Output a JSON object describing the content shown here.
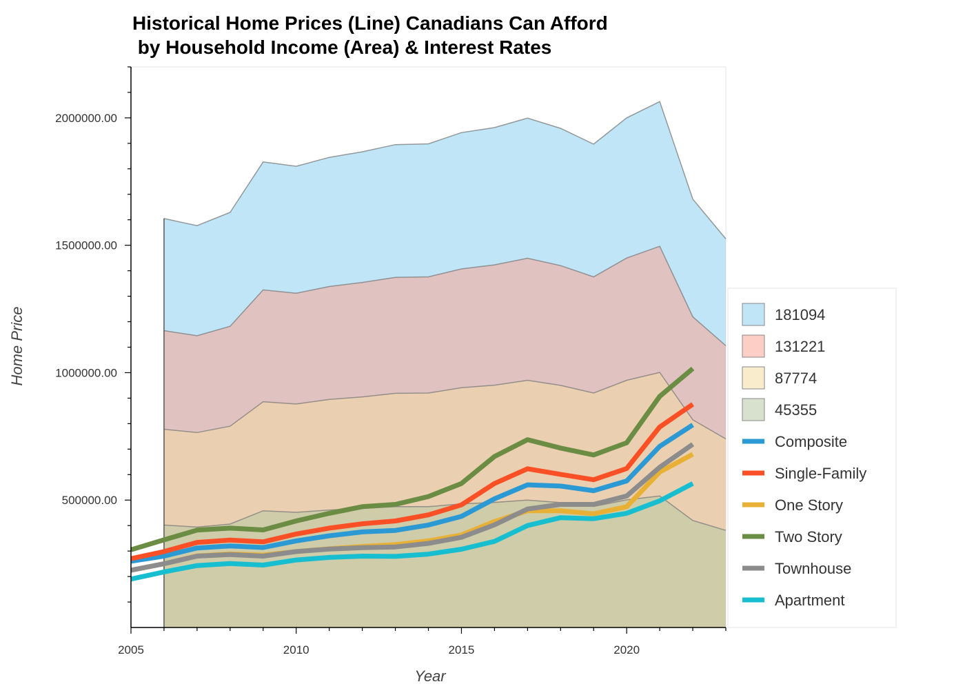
{
  "chart_data": {
    "type": "area",
    "title": [
      "Historical Home Prices (Line) Canadians Can Afford",
      " by Household Income (Area) & Interest Rates"
    ],
    "xlabel": "Year",
    "ylabel": "Home Price",
    "xlim": [
      2005,
      2023
    ],
    "ylim": [
      0,
      2200000
    ],
    "x_ticks": [
      "2005",
      "2010",
      "2015",
      "2020"
    ],
    "y_ticks": [
      "500000.00",
      "1000000.00",
      "1500000.00",
      "2000000.00"
    ],
    "legend_position": "right",
    "area_series": [
      {
        "name": "181094",
        "color": "#8dd0ee",
        "x": [
          2006,
          2007,
          2008,
          2009,
          2010,
          2011,
          2012,
          2013,
          2014,
          2015,
          2016,
          2017,
          2018,
          2019,
          2020,
          2021,
          2022,
          2023
        ],
        "values": [
          1605000,
          1577000,
          1629000,
          1827000,
          1810000,
          1845000,
          1867000,
          1895000,
          1898000,
          1942000,
          1962000,
          1999000,
          1959000,
          1897000,
          2000000,
          2064000,
          1681000,
          1525000
        ]
      },
      {
        "name": "131221",
        "color": "#f9a595",
        "x": [
          2006,
          2007,
          2008,
          2009,
          2010,
          2011,
          2012,
          2013,
          2014,
          2015,
          2016,
          2017,
          2018,
          2019,
          2020,
          2021,
          2022,
          2023
        ],
        "values": [
          1165000,
          1145000,
          1182000,
          1325000,
          1312000,
          1338000,
          1354000,
          1374000,
          1376000,
          1407000,
          1423000,
          1449000,
          1420000,
          1376000,
          1450000,
          1496000,
          1219000,
          1106000
        ]
      },
      {
        "name": "87774",
        "color": "#f3dca3",
        "x": [
          2006,
          2007,
          2008,
          2009,
          2010,
          2011,
          2012,
          2013,
          2014,
          2015,
          2016,
          2017,
          2018,
          2019,
          2020,
          2021,
          2022,
          2023
        ],
        "values": [
          778000,
          765000,
          790000,
          886000,
          877000,
          895000,
          905000,
          919000,
          920000,
          941000,
          951000,
          970000,
          950000,
          920000,
          970000,
          1001000,
          815000,
          740000
        ]
      },
      {
        "name": "45355",
        "color": "#b8c9a6",
        "x": [
          2006,
          2007,
          2008,
          2009,
          2010,
          2011,
          2012,
          2013,
          2014,
          2015,
          2016,
          2017,
          2018,
          2019,
          2020,
          2021,
          2022,
          2023
        ],
        "values": [
          402000,
          394000,
          406000,
          458000,
          452000,
          461000,
          467000,
          474000,
          474000,
          485000,
          491000,
          500000,
          490000,
          475000,
          501000,
          516000,
          420000,
          381000
        ]
      }
    ],
    "line_series": [
      {
        "name": "Composite",
        "color": "#2b99d4",
        "x": [
          2005,
          2006,
          2007,
          2008,
          2009,
          2010,
          2011,
          2012,
          2013,
          2014,
          2015,
          2016,
          2017,
          2018,
          2019,
          2020,
          2021,
          2022
        ],
        "values": [
          260000,
          280000,
          312000,
          320000,
          314000,
          340000,
          360000,
          375000,
          381000,
          402000,
          436000,
          505000,
          560000,
          555000,
          537000,
          575000,
          711000,
          795000
        ]
      },
      {
        "name": "Single-Family",
        "color": "#fb4f26",
        "x": [
          2005,
          2006,
          2007,
          2008,
          2009,
          2010,
          2011,
          2012,
          2013,
          2014,
          2015,
          2016,
          2017,
          2018,
          2019,
          2020,
          2021,
          2022
        ],
        "values": [
          270000,
          298000,
          334000,
          343000,
          336000,
          367000,
          390000,
          407000,
          418000,
          442000,
          481000,
          565000,
          623000,
          601000,
          580000,
          624000,
          787000,
          876000
        ]
      },
      {
        "name": "One Story",
        "color": "#e8b135",
        "x": [
          2005,
          2006,
          2007,
          2008,
          2009,
          2010,
          2011,
          2012,
          2013,
          2014,
          2015,
          2016,
          2017,
          2018,
          2019,
          2020,
          2021,
          2022
        ],
        "values": [
          225000,
          250000,
          281000,
          289000,
          284000,
          298000,
          309000,
          318000,
          325000,
          340000,
          363000,
          416000,
          458000,
          458000,
          446000,
          474000,
          610000,
          680000
        ]
      },
      {
        "name": "Two Story",
        "color": "#6b8c43",
        "x": [
          2005,
          2006,
          2007,
          2008,
          2009,
          2010,
          2011,
          2012,
          2013,
          2014,
          2015,
          2016,
          2017,
          2018,
          2019,
          2020,
          2021,
          2022
        ],
        "values": [
          305000,
          344000,
          382000,
          390000,
          383000,
          418000,
          448000,
          474000,
          483000,
          514000,
          565000,
          671000,
          737000,
          704000,
          677000,
          725000,
          907000,
          1016000
        ]
      },
      {
        "name": "Townhouse",
        "color": "#8c8c8c",
        "x": [
          2005,
          2006,
          2007,
          2008,
          2009,
          2010,
          2011,
          2012,
          2013,
          2014,
          2015,
          2016,
          2017,
          2018,
          2019,
          2020,
          2021,
          2022
        ],
        "values": [
          225000,
          250000,
          280000,
          286000,
          280000,
          298000,
          308000,
          313000,
          316000,
          330000,
          354000,
          403000,
          465000,
          483000,
          483000,
          516000,
          629000,
          719000
        ]
      },
      {
        "name": "Apartment",
        "color": "#17becf",
        "x": [
          2005,
          2006,
          2007,
          2008,
          2009,
          2010,
          2011,
          2012,
          2013,
          2014,
          2015,
          2016,
          2017,
          2018,
          2019,
          2020,
          2021,
          2022
        ],
        "values": [
          190000,
          218000,
          243000,
          251000,
          245000,
          265000,
          275000,
          280000,
          279000,
          288000,
          307000,
          338000,
          400000,
          431000,
          427000,
          448000,
          497000,
          565000
        ]
      }
    ]
  }
}
